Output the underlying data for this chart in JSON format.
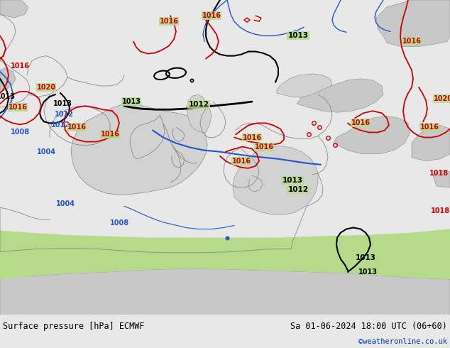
{
  "title_left": "Surface pressure [hPa] ECMWF",
  "title_right": "Sa 01-06-2024 18:00 UTC (06+60)",
  "credit": "©weatheronline.co.uk",
  "bg_color": "#b5db8a",
  "sea_color": "#d2d2d2",
  "gray_color": "#c8c8c8",
  "border_color": "#888888",
  "bottom_bg": "#e8e8e8",
  "figsize": [
    6.34,
    4.9
  ],
  "dpi": 100,
  "black": "#000000",
  "red": "#cc0000",
  "blue": "#2255cc"
}
